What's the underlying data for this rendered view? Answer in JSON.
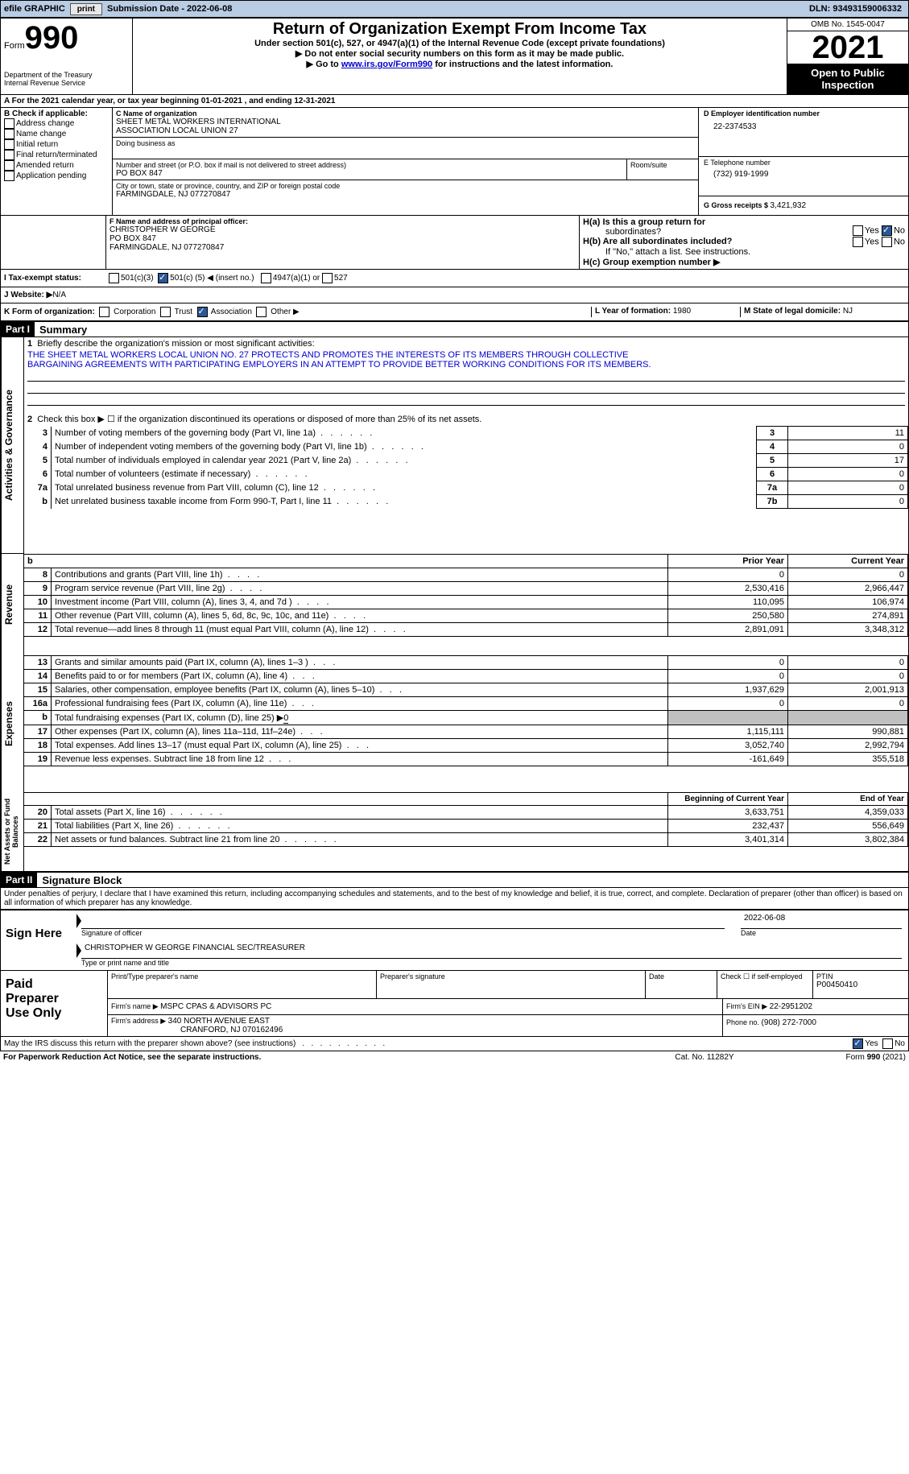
{
  "topbar": {
    "efile": "efile GRAPHIC",
    "print": "print",
    "submission_label": "Submission Date - ",
    "submission_date": "2022-06-08",
    "dln_label": "DLN: ",
    "dln": "93493159006332"
  },
  "header": {
    "form_label": "Form",
    "form_number": "990",
    "dept": "Department of the Treasury",
    "irs": "Internal Revenue Service",
    "title": "Return of Organization Exempt From Income Tax",
    "subtitle": "Under section 501(c), 527, or 4947(a)(1) of the Internal Revenue Code (except private foundations)",
    "note1": "▶ Do not enter social security numbers on this form as it may be made public.",
    "note2_pre": "▶ Go to ",
    "note2_link": "www.irs.gov/Form990",
    "note2_post": " for instructions and the latest information.",
    "omb_label": "OMB No. 1545-0047",
    "year": "2021",
    "inspection1": "Open to Public",
    "inspection2": "Inspection"
  },
  "period": {
    "line_a": "A For the 2021 calendar year, or tax year beginning ",
    "begin": "01-01-2021",
    "mid": " , and ending ",
    "end": "12-31-2021"
  },
  "box_b": {
    "title": "B Check if applicable:",
    "items": [
      "Address change",
      "Name change",
      "Initial return",
      "Final return/terminated",
      "Amended return",
      "Application pending"
    ]
  },
  "box_c": {
    "name_label": "C Name of organization",
    "name1": "SHEET METAL WORKERS INTERNATIONAL",
    "name2": "ASSOCIATION LOCAL UNION 27",
    "dba_label": "Doing business as",
    "addr_label": "Number and street (or P.O. box if mail is not delivered to street address)",
    "room_label": "Room/suite",
    "addr": "PO BOX 847",
    "city_label": "City or town, state or province, country, and ZIP or foreign postal code",
    "city": "FARMINGDALE, NJ  077270847"
  },
  "box_d": {
    "label": "D Employer identification number",
    "value": "22-2374533"
  },
  "box_e": {
    "label": "E Telephone number",
    "value": "(732) 919-1999"
  },
  "box_g": {
    "label": "G Gross receipts $ ",
    "value": "3,421,932"
  },
  "box_f": {
    "label": "F  Name and address of principal officer:",
    "name": "CHRISTOPHER W GEORGE",
    "addr1": "PO BOX 847",
    "addr2": "FARMINGDALE, NJ  077270847"
  },
  "box_h": {
    "ha_label": "H(a)  Is this a group return for",
    "ha_sub": "subordinates?",
    "hb_label": "H(b)  Are all subordinates included?",
    "hb_note": "If \"No,\" attach a list. See instructions.",
    "hc_label": "H(c)  Group exemption number ▶",
    "yes": "Yes",
    "no": "No"
  },
  "box_i": {
    "label": "I   Tax-exempt status:",
    "opt1": "501(c)(3)",
    "opt2_pre": "501(c) ( ",
    "opt2_num": "5",
    "opt2_post": " ) ◀ (insert no.)",
    "opt3": "4947(a)(1) or",
    "opt4": "527"
  },
  "box_j": {
    "label": "J   Website: ▶",
    "value": "  N/A"
  },
  "box_k": {
    "label": "K Form of organization:",
    "opts": [
      "Corporation",
      "Trust",
      "Association",
      "Other ▶"
    ],
    "checked_index": 2
  },
  "box_l": {
    "label": "L Year of formation: ",
    "value": "1980"
  },
  "box_m": {
    "label": "M State of legal domicile: ",
    "value": "NJ"
  },
  "part1": {
    "header": "Part I",
    "title": "Summary",
    "line1_label": "Briefly describe the organization's mission or most significant activities:",
    "mission1": "THE SHEET METAL WORKERS LOCAL UNION NO. 27 PROTECTS AND PROMOTES THE INTERESTS OF ITS MEMBERS THROUGH COLLECTIVE",
    "mission2": "BARGAINING AGREEMENTS WITH PARTICIPATING EMPLOYERS IN AN ATTEMPT TO PROVIDE BETTER WORKING CONDITIONS FOR ITS MEMBERS.",
    "line2": "Check this box ▶ ☐  if the organization discontinued its operations or disposed of more than 25% of its net assets.",
    "vlabel_ag": "Activities & Governance",
    "vlabel_rev": "Revenue",
    "vlabel_exp": "Expenses",
    "vlabel_net": "Net Assets or Fund Balances",
    "prior_header": "Prior Year",
    "current_header": "Current Year",
    "begin_header": "Beginning of Current Year",
    "end_header": "End of Year"
  },
  "gov_lines": [
    {
      "num": "3",
      "label": "Number of voting members of the governing body (Part VI, line 1a)",
      "box": "3",
      "val": "11"
    },
    {
      "num": "4",
      "label": "Number of independent voting members of the governing body (Part VI, line 1b)",
      "box": "4",
      "val": "0"
    },
    {
      "num": "5",
      "label": "Total number of individuals employed in calendar year 2021 (Part V, line 2a)",
      "box": "5",
      "val": "17"
    },
    {
      "num": "6",
      "label": "Total number of volunteers (estimate if necessary)",
      "box": "6",
      "val": "0"
    },
    {
      "num": "7a",
      "label": "Total unrelated business revenue from Part VIII, column (C), line 12",
      "box": "7a",
      "val": "0"
    },
    {
      "num": "b",
      "label": "Net unrelated business taxable income from Form 990-T, Part I, line 11",
      "box": "7b",
      "val": "0"
    }
  ],
  "rev_lines": [
    {
      "num": "8",
      "label": "Contributions and grants (Part VIII, line 1h)",
      "prior": "0",
      "cur": "0"
    },
    {
      "num": "9",
      "label": "Program service revenue (Part VIII, line 2g)",
      "prior": "2,530,416",
      "cur": "2,966,447"
    },
    {
      "num": "10",
      "label": "Investment income (Part VIII, column (A), lines 3, 4, and 7d )",
      "prior": "110,095",
      "cur": "106,974"
    },
    {
      "num": "11",
      "label": "Other revenue (Part VIII, column (A), lines 5, 6d, 8c, 9c, 10c, and 11e)",
      "prior": "250,580",
      "cur": "274,891"
    },
    {
      "num": "12",
      "label": "Total revenue—add lines 8 through 11 (must equal Part VIII, column (A), line 12)",
      "prior": "2,891,091",
      "cur": "3,348,312"
    }
  ],
  "exp_lines": [
    {
      "num": "13",
      "label": "Grants and similar amounts paid (Part IX, column (A), lines 1–3 )",
      "prior": "0",
      "cur": "0"
    },
    {
      "num": "14",
      "label": "Benefits paid to or for members (Part IX, column (A), line 4)",
      "prior": "0",
      "cur": "0"
    },
    {
      "num": "15",
      "label": "Salaries, other compensation, employee benefits (Part IX, column (A), lines 5–10)",
      "prior": "1,937,629",
      "cur": "2,001,913"
    },
    {
      "num": "16a",
      "label": "Professional fundraising fees (Part IX, column (A), line 11e)",
      "prior": "0",
      "cur": "0"
    }
  ],
  "exp_16b_label": "Total fundraising expenses (Part IX, column (D), line 25) ▶",
  "exp_16b_val": "0",
  "exp_lines2": [
    {
      "num": "17",
      "label": "Other expenses (Part IX, column (A), lines 11a–11d, 11f–24e)",
      "prior": "1,115,111",
      "cur": "990,881"
    },
    {
      "num": "18",
      "label": "Total expenses. Add lines 13–17 (must equal Part IX, column (A), line 25)",
      "prior": "3,052,740",
      "cur": "2,992,794"
    },
    {
      "num": "19",
      "label": "Revenue less expenses. Subtract line 18 from line 12",
      "prior": "-161,649",
      "cur": "355,518"
    }
  ],
  "net_lines": [
    {
      "num": "20",
      "label": "Total assets (Part X, line 16)",
      "prior": "3,633,751",
      "cur": "4,359,033"
    },
    {
      "num": "21",
      "label": "Total liabilities (Part X, line 26)",
      "prior": "232,437",
      "cur": "556,649"
    },
    {
      "num": "22",
      "label": "Net assets or fund balances. Subtract line 21 from line 20",
      "prior": "3,401,314",
      "cur": "3,802,384"
    }
  ],
  "part2": {
    "header": "Part II",
    "title": "Signature Block",
    "declaration": "Under penalties of perjury, I declare that I have examined this return, including accompanying schedules and statements, and to the best of my knowledge and belief, it is true, correct, and complete. Declaration of preparer (other than officer) is based on all information of which preparer has any knowledge."
  },
  "sign": {
    "here": "Sign Here",
    "sig_label": "Signature of officer",
    "date_label": "Date",
    "date_value": "2022-06-08",
    "name": "CHRISTOPHER W GEORGE  FINANCIAL SEC/TREASURER",
    "name_label": "Type or print name and title"
  },
  "preparer": {
    "title1": "Paid",
    "title2": "Preparer",
    "title3": "Use Only",
    "print_label": "Print/Type preparer's name",
    "sig_label": "Preparer's signature",
    "date_label": "Date",
    "check_label": "Check ☐ if self-employed",
    "ptin_label": "PTIN",
    "ptin": "P00450410",
    "firm_name_label": "Firm's name    ▶ ",
    "firm_name": "MSPC CPAS & ADVISORS PC",
    "firm_ein_label": "Firm's EIN ▶ ",
    "firm_ein": "22-2951202",
    "firm_addr_label": "Firm's address ▶ ",
    "firm_addr1": "340 NORTH AVENUE EAST",
    "firm_addr2": "CRANFORD, NJ  070162496",
    "phone_label": "Phone no. ",
    "phone": "(908) 272-7000"
  },
  "discuss": {
    "label": "May the IRS discuss this return with the preparer shown above? (see instructions)",
    "yes": "Yes",
    "no": "No"
  },
  "footer": {
    "left": "For Paperwork Reduction Act Notice, see the separate instructions.",
    "mid": "Cat. No. 11282Y",
    "right": "Form 990 (2021)"
  },
  "colors": {
    "topbar_bg": "#b8cce4",
    "link": "#0000cd",
    "black": "#000000",
    "check_blue": "#2b5797",
    "gray": "#c0c0c0"
  }
}
